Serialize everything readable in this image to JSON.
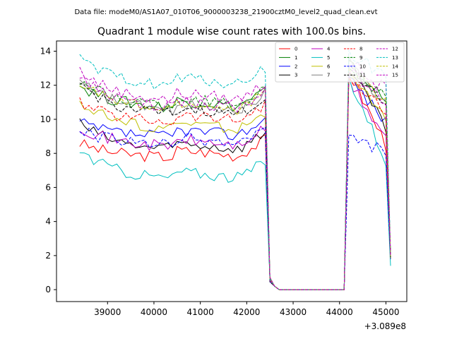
{
  "chart_data": {
    "type": "line",
    "suptitle": "Data file: modeM0/AS1A07_010T06_9000003238_21900cztM0_level2_quad_clean.evt",
    "title": "Quadrant 1 module wise count rates with 100.0s bins.",
    "xlabel": "",
    "ylabel": "",
    "x_offset_label": "+3.089e8",
    "xlim": [
      37900,
      45450
    ],
    "ylim": [
      -0.7,
      14.6
    ],
    "x_ticks": [
      39000,
      40000,
      41000,
      42000,
      43000,
      44000,
      45000
    ],
    "x_tick_labels": [
      "39000",
      "40000",
      "41000",
      "42000",
      "43000",
      "44000",
      "45000"
    ],
    "y_ticks": [
      0,
      2,
      4,
      6,
      8,
      10,
      12,
      14
    ],
    "y_tick_labels": [
      "0",
      "2",
      "4",
      "6",
      "8",
      "10",
      "12",
      "14"
    ],
    "legend_position": "top-right",
    "segments": [
      {
        "start": 38400,
        "end": 42400,
        "step": 100
      },
      {
        "start": 42500,
        "end": 42600,
        "step": 100
      },
      {
        "start": 42700,
        "end": 44100,
        "step": 100
      },
      {
        "start": 44200,
        "end": 45100,
        "step": 100
      }
    ],
    "series": [
      {
        "name": "0",
        "color": "#ff0000",
        "style": "solid",
        "level": 7.6,
        "start": 8.6,
        "peak": 12.8,
        "end": 8.0,
        "last": 1.8
      },
      {
        "name": "1",
        "color": "#008000",
        "style": "solid",
        "level": 10.5,
        "start": 12.0,
        "peak": 13.2,
        "end": 10.8,
        "last": 1.9
      },
      {
        "name": "2",
        "color": "#0000ff",
        "style": "solid",
        "level": 8.8,
        "start": 9.8,
        "peak": 12.5,
        "end": 9.5,
        "last": 1.9
      },
      {
        "name": "3",
        "color": "#000000",
        "style": "solid",
        "level": 8.0,
        "start": 9.8,
        "peak": 13.0,
        "end": 9.0,
        "last": 1.8
      },
      {
        "name": "4",
        "color": "#bf00bf",
        "style": "solid",
        "level": 8.2,
        "start": 9.6,
        "peak": 12.2,
        "end": 8.5,
        "last": 1.9
      },
      {
        "name": "5",
        "color": "#00bfbf",
        "style": "solid",
        "level": 6.3,
        "start": 8.2,
        "peak": 12.5,
        "end": 7.0,
        "last": 1.4
      },
      {
        "name": "6",
        "color": "#bfbf00",
        "style": "solid",
        "level": 9.2,
        "start": 11.1,
        "peak": 12.6,
        "end": 9.6,
        "last": 1.8
      },
      {
        "name": "7",
        "color": "#808080",
        "style": "solid",
        "level": 10.3,
        "start": 12.2,
        "peak": 13.4,
        "end": 10.5,
        "last": 2.0
      },
      {
        "name": "8",
        "color": "#ff0000",
        "style": "dashed",
        "level": 9.7,
        "start": 11.0,
        "peak": 12.4,
        "end": 10.2,
        "last": 1.9
      },
      {
        "name": "9",
        "color": "#008000",
        "style": "dashed",
        "level": 10.6,
        "start": 12.3,
        "peak": 13.3,
        "end": 10.9,
        "last": 2.0
      },
      {
        "name": "10",
        "color": "#0000ff",
        "style": "dashed",
        "level": 8.3,
        "start": 9.4,
        "peak": 8.8,
        "end": 8.1,
        "last": 1.8
      },
      {
        "name": "11",
        "color": "#000000",
        "style": "dashed",
        "level": 10.0,
        "start": 12.1,
        "peak": 13.1,
        "end": 10.6,
        "last": 1.9
      },
      {
        "name": "12",
        "color": "#bf00bf",
        "style": "dashed",
        "level": 10.9,
        "start": 12.9,
        "peak": 13.4,
        "end": 11.5,
        "last": 2.0
      },
      {
        "name": "13",
        "color": "#00bfbf",
        "style": "dashed",
        "level": 11.8,
        "start": 13.5,
        "peak": 13.8,
        "end": 12.5,
        "last": 2.1
      },
      {
        "name": "14",
        "color": "#bfbf00",
        "style": "dashed",
        "level": 10.3,
        "start": 12.2,
        "peak": 13.0,
        "end": 10.8,
        "last": 1.9
      },
      {
        "name": "15",
        "color": "#bf00bf",
        "style": "dashed",
        "level": 10.4,
        "start": 12.5,
        "peak": 12.9,
        "end": 10.9,
        "last": 2.0
      }
    ]
  }
}
